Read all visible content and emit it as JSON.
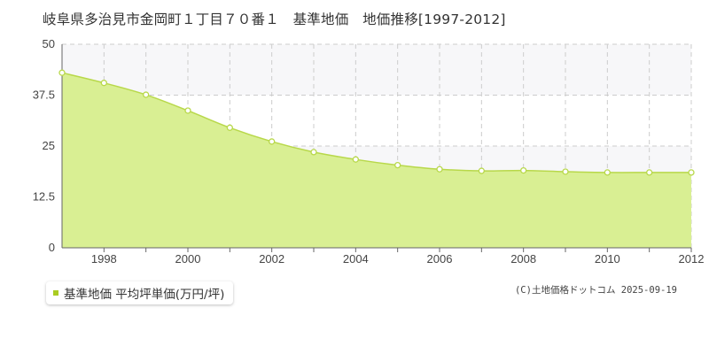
{
  "header": {
    "title": "岐阜県多治見市金岡町１丁目７０番１　基準地価　地価推移[1997-2012]"
  },
  "legend": {
    "label": "基準地価 平均坪単価(万円/坪)"
  },
  "credit": {
    "text": "(C)土地価格ドットコム 2025-09-19"
  },
  "colors": {
    "area_fill": "#d9ef93",
    "line": "#b8d84a",
    "marker_fill": "#ffffff",
    "grid": "#cccccc",
    "band": "#f7f7f9",
    "legend_swatch": "#aacc22"
  },
  "chart_data": {
    "type": "area",
    "title": "",
    "xlabel": "",
    "ylabel": "",
    "x": [
      1997,
      1998,
      1999,
      2000,
      2001,
      2002,
      2003,
      2004,
      2005,
      2006,
      2007,
      2008,
      2009,
      2010,
      2011,
      2012
    ],
    "series": [
      {
        "name": "基準地価 平均坪単価(万円/坪)",
        "values": [
          43.0,
          40.5,
          37.6,
          33.7,
          29.5,
          26.1,
          23.5,
          21.7,
          20.3,
          19.3,
          18.9,
          19.0,
          18.7,
          18.5,
          18.5,
          18.5
        ]
      }
    ],
    "xlim": [
      1997,
      2012
    ],
    "ylim": [
      0,
      50
    ],
    "x_ticks": [
      "1998",
      "2000",
      "2002",
      "2004",
      "2006",
      "2008",
      "2010",
      "2012"
    ],
    "y_ticks": [
      "0",
      "12.5",
      "25",
      "37.5",
      "50"
    ],
    "grid": true,
    "legend_position": "bottom-left"
  }
}
